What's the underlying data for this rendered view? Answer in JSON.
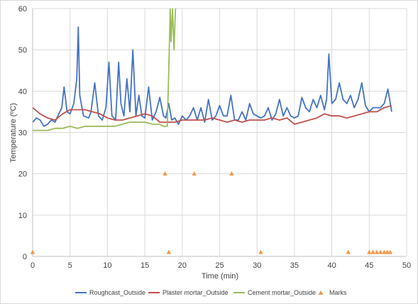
{
  "chart_data": {
    "type": "line",
    "title": "",
    "xlabel": "Time (min)",
    "ylabel": "Temperature (ºC)",
    "xlim": [
      0,
      50
    ],
    "ylim": [
      0,
      60
    ],
    "xticks": [
      "0",
      "5",
      "10",
      "15",
      "20",
      "25",
      "30",
      "35",
      "40",
      "45",
      "50"
    ],
    "yticks": [
      "0",
      "10",
      "20",
      "30",
      "40",
      "50",
      "60"
    ],
    "grid": "vertical and horizontal major gridlines",
    "legend_position": "bottom",
    "series": [
      {
        "name": "Roughcast_Outside",
        "color": "#4472c4",
        "x": [
          0,
          0.5,
          1,
          1.5,
          2,
          2.5,
          3,
          3.5,
          3.9,
          4.2,
          4.6,
          5,
          5.5,
          5.9,
          6.1,
          6.3,
          6.8,
          7.5,
          7.8,
          8.3,
          8.8,
          9.3,
          9.8,
          10.2,
          10.6,
          11.1,
          11.5,
          11.8,
          12.2,
          12.6,
          13,
          13.4,
          13.8,
          14.2,
          14.6,
          15,
          15.5,
          16,
          16.5,
          17,
          17.5,
          17.8,
          18.2,
          18.6,
          19,
          19.5,
          20,
          20.5,
          21,
          21.5,
          22,
          22.5,
          23,
          23.5,
          24,
          24.5,
          25,
          25.5,
          26,
          26.5,
          27,
          27.5,
          28,
          28.5,
          29,
          29.5,
          30,
          30.5,
          31,
          31.5,
          32,
          32.5,
          33,
          33.5,
          34,
          34.5,
          35,
          35.5,
          36,
          36.5,
          37,
          37.5,
          38,
          38.5,
          39,
          39.3,
          39.6,
          40,
          40.5,
          41,
          41.5,
          42,
          42.5,
          43,
          43.5,
          44,
          44.5,
          45,
          45.5,
          46,
          46.5,
          47,
          47.5,
          48
        ],
        "values": [
          32.5,
          33.5,
          33,
          31.5,
          32,
          33,
          32.5,
          34.5,
          36,
          41,
          35,
          34.5,
          37,
          43,
          55.5,
          39,
          34,
          33.5,
          35,
          42,
          34,
          33,
          36,
          47,
          34,
          33,
          47,
          37,
          34,
          43,
          35,
          50,
          34,
          39,
          34,
          33.5,
          41,
          33,
          35,
          38.5,
          34,
          33.5,
          37,
          33,
          33.5,
          32,
          34,
          33,
          34,
          36,
          33,
          36,
          32.5,
          38,
          33,
          34,
          36.5,
          34,
          34,
          39,
          33,
          33,
          35,
          33,
          37,
          34.5,
          34,
          33.5,
          34,
          36,
          33,
          34.5,
          38,
          34,
          36,
          34,
          33.5,
          34,
          38.5,
          36,
          35,
          38,
          36,
          39,
          35.5,
          38,
          49,
          37,
          38,
          42,
          38,
          37,
          39,
          36,
          38,
          42,
          36.5,
          35,
          36,
          36,
          36,
          37,
          40.5,
          35
        ]
      },
      {
        "name": "Plaster mortar_Outside",
        "color": "#c0504d",
        "x": [
          0,
          1,
          2,
          3,
          4,
          5,
          6,
          7,
          8,
          9,
          10,
          11,
          12,
          13,
          14,
          15,
          16,
          17,
          18,
          19,
          20,
          21,
          22,
          23,
          24,
          25,
          26,
          27,
          28,
          29,
          30,
          31,
          32,
          33,
          34,
          35,
          36,
          37,
          38,
          39,
          40,
          41,
          42,
          43,
          44,
          45,
          46,
          47,
          48
        ],
        "values": [
          36,
          34.5,
          33.5,
          33,
          34.5,
          35.5,
          35.5,
          35.5,
          35,
          34.5,
          33.5,
          33,
          33,
          33.5,
          34,
          34.5,
          34,
          32.5,
          32.5,
          32.5,
          33,
          33,
          33,
          33,
          33.5,
          33,
          32.5,
          33,
          32.5,
          33,
          33,
          33,
          33.5,
          33,
          33.5,
          32,
          32.5,
          33,
          33.5,
          34.5,
          34,
          34,
          33.5,
          34,
          34.5,
          35,
          35,
          36,
          36.5
        ]
      },
      {
        "name": "Cement mortar_Outside",
        "color": "#9bbb59",
        "x": [
          0,
          1,
          2,
          3,
          4,
          5,
          6,
          7,
          8,
          9,
          10,
          11,
          12,
          13,
          14,
          15,
          16,
          17,
          17.5,
          18,
          18.2,
          18.4,
          18.5,
          18.7,
          18.9,
          19.1
        ],
        "values": [
          30.5,
          30.5,
          30.5,
          31,
          31,
          31.5,
          31,
          31.5,
          31.5,
          31.5,
          31.5,
          31.5,
          32,
          32.5,
          32.5,
          32.5,
          32,
          32,
          31.5,
          31.5,
          45,
          60,
          52,
          60,
          50,
          60
        ]
      }
    ],
    "marks": {
      "name": "Marks",
      "color": "#f79646",
      "x": [
        0,
        17.7,
        18.2,
        21.6,
        26.6,
        30.5,
        42.2,
        45,
        45.5,
        46,
        46.5,
        47,
        47.4,
        47.8
      ],
      "values": [
        1,
        20,
        1,
        20,
        20,
        1,
        1,
        1,
        1,
        1,
        1,
        1,
        1,
        1
      ]
    }
  }
}
